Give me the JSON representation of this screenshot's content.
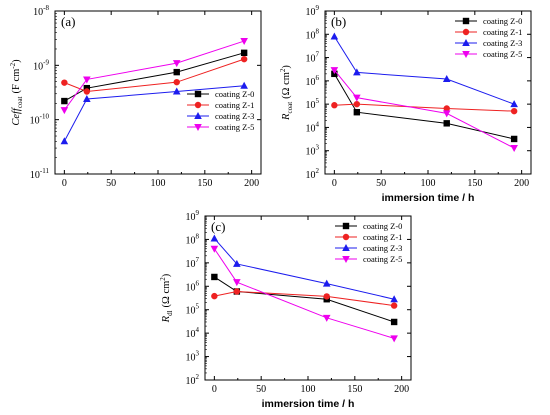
{
  "chart_data": [
    {
      "panel_label": "(a)",
      "type": "line",
      "xlabel": "",
      "ylabel_main": "Ceff",
      "ylabel_sub": "coat",
      "ylabel_unit": "(F cm",
      "ylabel_unit_sup": "-2",
      "ylabel_unit_close": ")",
      "yscale": "log",
      "xlim": [
        -10,
        210
      ],
      "ylim_exp": [
        -11,
        -8
      ],
      "x_ticks": [
        "0",
        "50",
        "100",
        "150",
        "200"
      ],
      "y_ticks": [
        {
          "base": "10",
          "exp": "-11"
        },
        {
          "base": "10",
          "exp": "-10"
        },
        {
          "base": "10",
          "exp": "-9"
        },
        {
          "base": "10",
          "exp": "-8"
        }
      ],
      "legend_position": "lower-right",
      "series": [
        {
          "name": "coating Z-0",
          "color": "#000000",
          "marker": "square",
          "x": [
            0,
            24,
            120,
            192
          ],
          "y": [
            2.2e-10,
            3.8e-10,
            7.5e-10,
            1.7e-09
          ]
        },
        {
          "name": "coating Z-1",
          "color": "#ee2222",
          "marker": "circle",
          "x": [
            0,
            24,
            120,
            192
          ],
          "y": [
            4.8e-10,
            3.3e-10,
            4.9e-10,
            1.3e-09
          ]
        },
        {
          "name": "coating Z-3",
          "color": "#1c1cee",
          "marker": "triangle-up",
          "x": [
            0,
            24,
            120,
            192
          ],
          "y": [
            4e-11,
            2.4e-10,
            3.3e-10,
            4.2e-10
          ]
        },
        {
          "name": "coating Z-5",
          "color": "#ee00ee",
          "marker": "triangle-down",
          "x": [
            0,
            24,
            120,
            192
          ],
          "y": [
            1.5e-10,
            5.5e-10,
            1.1e-09,
            2.8e-09
          ]
        }
      ]
    },
    {
      "panel_label": "(b)",
      "type": "line",
      "xlabel": "immersion time / h",
      "ylabel_main": "R",
      "ylabel_sub": "coat",
      "ylabel_unit": "(Ω cm",
      "ylabel_unit_sup": "2",
      "ylabel_unit_close": ")",
      "yscale": "log",
      "xlim": [
        -10,
        210
      ],
      "ylim_exp": [
        2,
        9
      ],
      "x_ticks": [
        "0",
        "50",
        "100",
        "150",
        "200"
      ],
      "y_ticks": [
        {
          "base": "10",
          "exp": "2"
        },
        {
          "base": "10",
          "exp": "3"
        },
        {
          "base": "10",
          "exp": "4"
        },
        {
          "base": "10",
          "exp": "5"
        },
        {
          "base": "10",
          "exp": "6"
        },
        {
          "base": "10",
          "exp": "7"
        },
        {
          "base": "10",
          "exp": "8"
        },
        {
          "base": "10",
          "exp": "9"
        }
      ],
      "legend_position": "top-right",
      "series": [
        {
          "name": "coating Z-0",
          "color": "#000000",
          "marker": "square",
          "x": [
            0,
            24,
            120,
            192
          ],
          "y": [
            2000000.0,
            45000.0,
            15000.0,
            3200.0
          ]
        },
        {
          "name": "coating Z-1",
          "color": "#ee2222",
          "marker": "circle",
          "x": [
            0,
            24,
            120,
            192
          ],
          "y": [
            90000.0,
            100000.0,
            65000.0,
            50000.0
          ]
        },
        {
          "name": "coating Z-3",
          "color": "#1c1cee",
          "marker": "triangle-up",
          "x": [
            0,
            24,
            120,
            192
          ],
          "y": [
            80000000.0,
            2300000.0,
            1200000.0,
            100000.0
          ]
        },
        {
          "name": "coating Z-5",
          "color": "#ee00ee",
          "marker": "triangle-down",
          "x": [
            0,
            24,
            120,
            192
          ],
          "y": [
            2900000.0,
            190000.0,
            40000.0,
            1300.0
          ]
        }
      ]
    },
    {
      "panel_label": "(c)",
      "type": "line",
      "xlabel": "immersion time / h",
      "ylabel_main": "R",
      "ylabel_sub": "dl",
      "ylabel_unit": "(Ω cm",
      "ylabel_unit_sup": "2",
      "ylabel_unit_close": ")",
      "yscale": "log",
      "xlim": [
        -10,
        210
      ],
      "ylim_exp": [
        2,
        9
      ],
      "x_ticks": [
        "0",
        "50",
        "100",
        "150",
        "200"
      ],
      "y_ticks": [
        {
          "base": "10",
          "exp": "2"
        },
        {
          "base": "10",
          "exp": "3"
        },
        {
          "base": "10",
          "exp": "4"
        },
        {
          "base": "10",
          "exp": "5"
        },
        {
          "base": "10",
          "exp": "6"
        },
        {
          "base": "10",
          "exp": "7"
        },
        {
          "base": "10",
          "exp": "8"
        },
        {
          "base": "10",
          "exp": "9"
        }
      ],
      "legend_position": "top-right",
      "series": [
        {
          "name": "coating Z-0",
          "color": "#000000",
          "marker": "square",
          "x": [
            0,
            24,
            120,
            192
          ],
          "y": [
            2500000.0,
            600000.0,
            280000.0,
            30000.0
          ]
        },
        {
          "name": "coating Z-1",
          "color": "#ee2222",
          "marker": "circle",
          "x": [
            0,
            24,
            120,
            192
          ],
          "y": [
            380000.0,
            600000.0,
            370000.0,
            150000.0
          ]
        },
        {
          "name": "coating Z-3",
          "color": "#1c1cee",
          "marker": "triangle-up",
          "x": [
            0,
            24,
            120,
            192
          ],
          "y": [
            110000000.0,
            9000000.0,
            1300000.0,
            280000.0
          ]
        },
        {
          "name": "coating Z-5",
          "color": "#ee00ee",
          "marker": "triangle-down",
          "x": [
            0,
            24,
            120,
            192
          ],
          "y": [
            40000000.0,
            1500000.0,
            45000.0,
            6000.0
          ]
        }
      ]
    }
  ]
}
